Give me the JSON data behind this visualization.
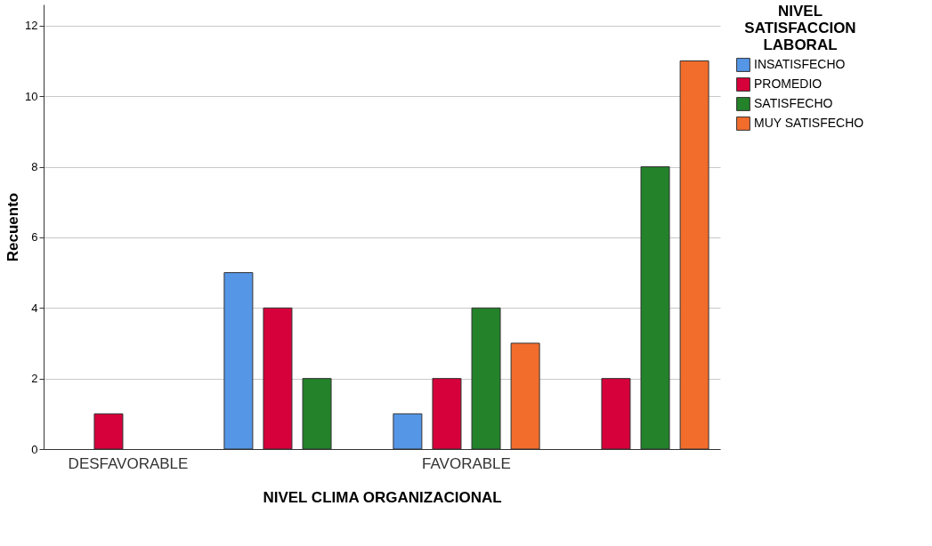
{
  "chart_data": {
    "type": "bar",
    "xlabel": "NIVEL CLIMA ORGANIZACIONAL",
    "ylabel": "Recuento",
    "legend_title": "NIVEL SATISFACCION LABORAL",
    "categories": [
      "DESFAVORABLE",
      null,
      "FAVORABLE",
      null
    ],
    "series": [
      {
        "name": "INSATISFECHO",
        "color": "#5596e6",
        "values": [
          null,
          5,
          1,
          null
        ]
      },
      {
        "name": "PROMEDIO",
        "color": "#d6003a",
        "values": [
          1,
          4,
          2,
          2
        ]
      },
      {
        "name": "SATISFECHO",
        "color": "#23822a",
        "values": [
          null,
          2,
          4,
          8
        ]
      },
      {
        "name": "MUY SATISFECHO",
        "color": "#f26c2c",
        "values": [
          null,
          null,
          3,
          11
        ]
      }
    ],
    "ylim": [
      0,
      12.6
    ],
    "yticks": [
      0,
      2,
      4,
      6,
      8,
      10,
      12
    ],
    "grid": "y",
    "legend": "top right"
  }
}
